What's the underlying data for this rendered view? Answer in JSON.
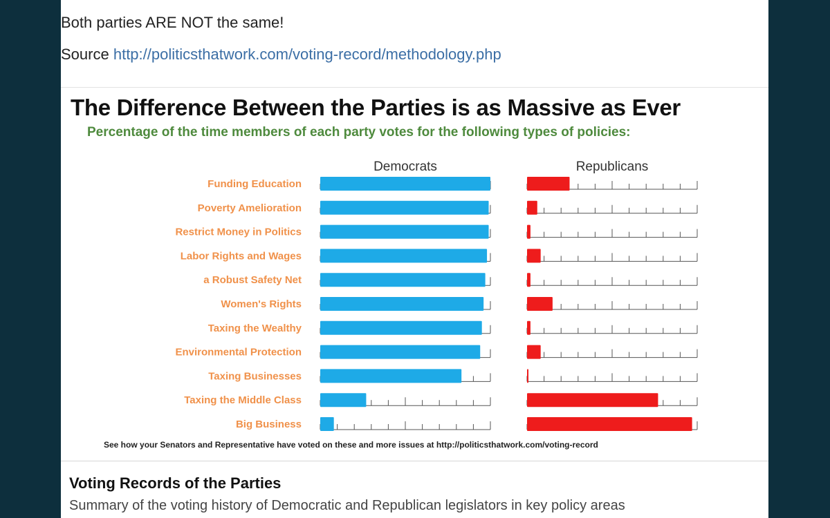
{
  "post": {
    "text": "Both parties ARE NOT the same!",
    "source_label": "Source",
    "source_url": "http://politicsthatwork.com/voting-record/methodology.php"
  },
  "link_card": {
    "title": "Voting Records of the Parties",
    "description": "Summary of the voting history of Democratic and Republican legislators in key policy areas"
  },
  "colors": {
    "democrats": "#1eaae7",
    "republicans": "#ee1c1c",
    "category_text": "#f0914a",
    "subtitle": "#4e8a3d"
  },
  "chart_data": {
    "type": "bar",
    "title": "The Difference Between the Parties is as Massive as Ever",
    "subtitle": "Percentage of the time members of each party votes for the following types of policies:",
    "categories": [
      "Funding Education",
      "Poverty Amelioration",
      "Restrict Money in Politics",
      "Labor Rights and Wages",
      "a Robust Safety Net",
      "Women's Rights",
      "Taxing the Wealthy",
      "Environmental Protection",
      "Taxing Businesses",
      "Taxing the Middle Class",
      "Big Business"
    ],
    "series": [
      {
        "name": "Democrats",
        "values": [
          100,
          99,
          99,
          98,
          97,
          96,
          95,
          94,
          83,
          27,
          8
        ]
      },
      {
        "name": "Republicans",
        "values": [
          25,
          6,
          2,
          8,
          2,
          15,
          2,
          8,
          0,
          77,
          97
        ]
      }
    ],
    "ylim": [
      0,
      100
    ],
    "grid": true,
    "footnote_text": "See how your Senators and Representative have voted on these and more issues at ",
    "footnote_link": "http://politicsthatwork.com/voting-record"
  }
}
